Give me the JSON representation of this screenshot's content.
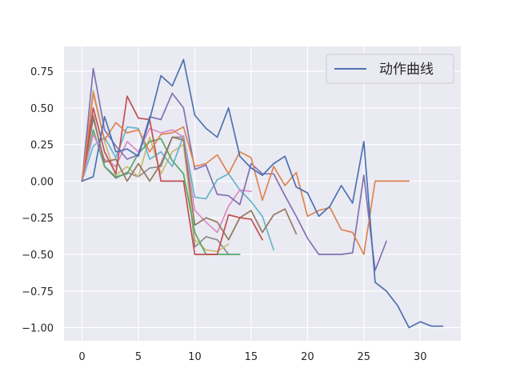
{
  "chart_data": {
    "type": "line",
    "title": "",
    "xlabel": "",
    "ylabel": "",
    "xlim": [
      -1.6,
      33.6
    ],
    "ylim": [
      -1.09,
      0.92
    ],
    "xticks": [
      0,
      5,
      10,
      15,
      20,
      25,
      30
    ],
    "yticks": [
      0.75,
      0.5,
      0.25,
      0.0,
      -0.25,
      -0.5,
      -0.75,
      -1.0
    ],
    "xtick_labels": [
      "0",
      "5",
      "10",
      "15",
      "20",
      "25",
      "30"
    ],
    "ytick_labels": [
      "0.75",
      "0.50",
      "0.25",
      "0.00",
      "−0.25",
      "−0.50",
      "−0.75",
      "−1.00"
    ],
    "grid": true,
    "background": "#eaeaf2",
    "legend": {
      "position": "top-right",
      "entries": [
        "动作曲线"
      ]
    },
    "series": [
      {
        "name": "动作曲线",
        "color": "#4c72b0",
        "x": [
          0,
          1,
          2,
          3,
          4,
          5,
          6,
          7,
          8,
          9,
          10,
          11,
          12,
          13,
          14,
          15,
          16,
          17,
          18,
          19,
          20,
          21,
          22,
          23,
          24,
          25,
          26,
          27,
          28,
          29,
          30,
          31,
          32
        ],
        "y": [
          0,
          0.03,
          0.44,
          0.2,
          0.22,
          0.17,
          0.42,
          0.72,
          0.65,
          0.83,
          0.45,
          0.36,
          0.3,
          0.5,
          0.17,
          0.09,
          0.04,
          0.12,
          0.17,
          -0.04,
          -0.08,
          -0.24,
          -0.17,
          -0.03,
          -0.15,
          0.27,
          -0.69,
          -0.75,
          -0.85,
          -1.0,
          -0.96,
          -0.99,
          -0.99
        ]
      },
      {
        "color": "#dd8452",
        "x": [
          0,
          1,
          2,
          3,
          4,
          5,
          6,
          7,
          8,
          9,
          10,
          11,
          12,
          13,
          14,
          15,
          16,
          17,
          18,
          19,
          20,
          21,
          22,
          23,
          24,
          25,
          26,
          27,
          28,
          29
        ],
        "y": [
          0,
          0.6,
          0.28,
          0.4,
          0.33,
          0.35,
          0.2,
          0.32,
          0.33,
          0.37,
          0.1,
          0.12,
          0.18,
          0.05,
          0.2,
          0.16,
          -0.13,
          0.1,
          -0.03,
          0.06,
          -0.24,
          -0.2,
          -0.18,
          -0.33,
          -0.35,
          -0.5,
          0.0,
          0.0,
          0.0,
          0.0
        ]
      },
      {
        "color": "#8172b3",
        "x": [
          0,
          1,
          2,
          3,
          4,
          5,
          6,
          7,
          8,
          9,
          10,
          11,
          12,
          13,
          14,
          15,
          16,
          17,
          18,
          19,
          20,
          21,
          22,
          23,
          24,
          25,
          26,
          27
        ],
        "y": [
          0,
          0.77,
          0.35,
          0.24,
          0.15,
          0.18,
          0.44,
          0.42,
          0.6,
          0.5,
          0.08,
          0.11,
          -0.09,
          -0.1,
          -0.16,
          0.12,
          0.05,
          0.05,
          -0.1,
          -0.24,
          -0.39,
          -0.5,
          -0.5,
          -0.5,
          -0.49,
          0.04,
          -0.61,
          -0.41
        ]
      },
      {
        "color": "#c44e52",
        "x": [
          0,
          1,
          2,
          3,
          4,
          5,
          6,
          7,
          8,
          9,
          10,
          11,
          12,
          13,
          14,
          15,
          16
        ],
        "y": [
          0,
          0.5,
          0.2,
          0.05,
          0.58,
          0.43,
          0.42,
          0.0,
          0.0,
          0.0,
          -0.5,
          -0.5,
          -0.5,
          -0.23,
          -0.25,
          -0.26,
          -0.4
        ]
      },
      {
        "color": "#937860",
        "x": [
          0,
          1,
          2,
          3,
          4,
          5,
          6,
          7,
          8,
          9,
          10,
          11,
          12,
          13,
          14,
          15,
          16,
          17,
          18,
          19
        ],
        "y": [
          0,
          0.43,
          0.13,
          0.15,
          0.0,
          0.12,
          0.0,
          0.12,
          0.3,
          0.28,
          -0.3,
          -0.25,
          -0.28,
          -0.4,
          -0.25,
          -0.2,
          -0.35,
          -0.23,
          -0.19,
          -0.36
        ]
      },
      {
        "color": "#da8bc3",
        "x": [
          0,
          1,
          2,
          3,
          4,
          5,
          6,
          7,
          8,
          9,
          10,
          11,
          12,
          13,
          14,
          15
        ],
        "y": [
          0,
          0.32,
          0.15,
          0.1,
          0.27,
          0.2,
          0.36,
          0.33,
          0.35,
          0.3,
          -0.2,
          -0.28,
          -0.35,
          -0.17,
          -0.06,
          -0.07
        ]
      },
      {
        "color": "#55a868",
        "x": [
          0,
          1,
          2,
          3,
          4,
          5,
          6,
          7,
          8,
          9,
          10,
          11,
          12,
          13,
          14
        ],
        "y": [
          0,
          0.35,
          0.1,
          0.03,
          0.05,
          0.19,
          0.27,
          0.29,
          0.14,
          0.05,
          -0.35,
          -0.5,
          -0.5,
          -0.5,
          -0.5
        ]
      },
      {
        "color": "#64b5cd",
        "x": [
          0,
          1,
          2,
          3,
          4,
          5,
          6,
          7,
          8,
          9,
          10,
          11,
          12,
          13,
          14,
          15,
          16,
          17
        ],
        "y": [
          0,
          0.24,
          0.3,
          0.16,
          0.37,
          0.36,
          0.15,
          0.2,
          0.1,
          0.31,
          -0.11,
          -0.12,
          0.01,
          0.05,
          -0.06,
          -0.14,
          -0.24,
          -0.47
        ]
      },
      {
        "color": "#ccb974",
        "x": [
          0,
          1,
          2,
          3,
          4,
          5,
          6,
          7,
          8,
          9,
          10,
          11,
          12,
          13
        ],
        "y": [
          0,
          0.62,
          0.27,
          0.04,
          0.1,
          0.03,
          0.3,
          0.05,
          0.2,
          0.25,
          -0.4,
          -0.47,
          -0.48,
          -0.43
        ]
      },
      {
        "color": "#8c8c8c",
        "x": [
          0,
          1,
          2,
          3,
          4,
          5,
          6,
          7,
          8,
          9,
          10,
          11,
          12,
          13
        ],
        "y": [
          0,
          0.45,
          0.1,
          0.02,
          0.06,
          0.03,
          0.09,
          0.1,
          0.3,
          0.3,
          -0.45,
          -0.38,
          -0.4,
          -0.5
        ]
      }
    ]
  }
}
